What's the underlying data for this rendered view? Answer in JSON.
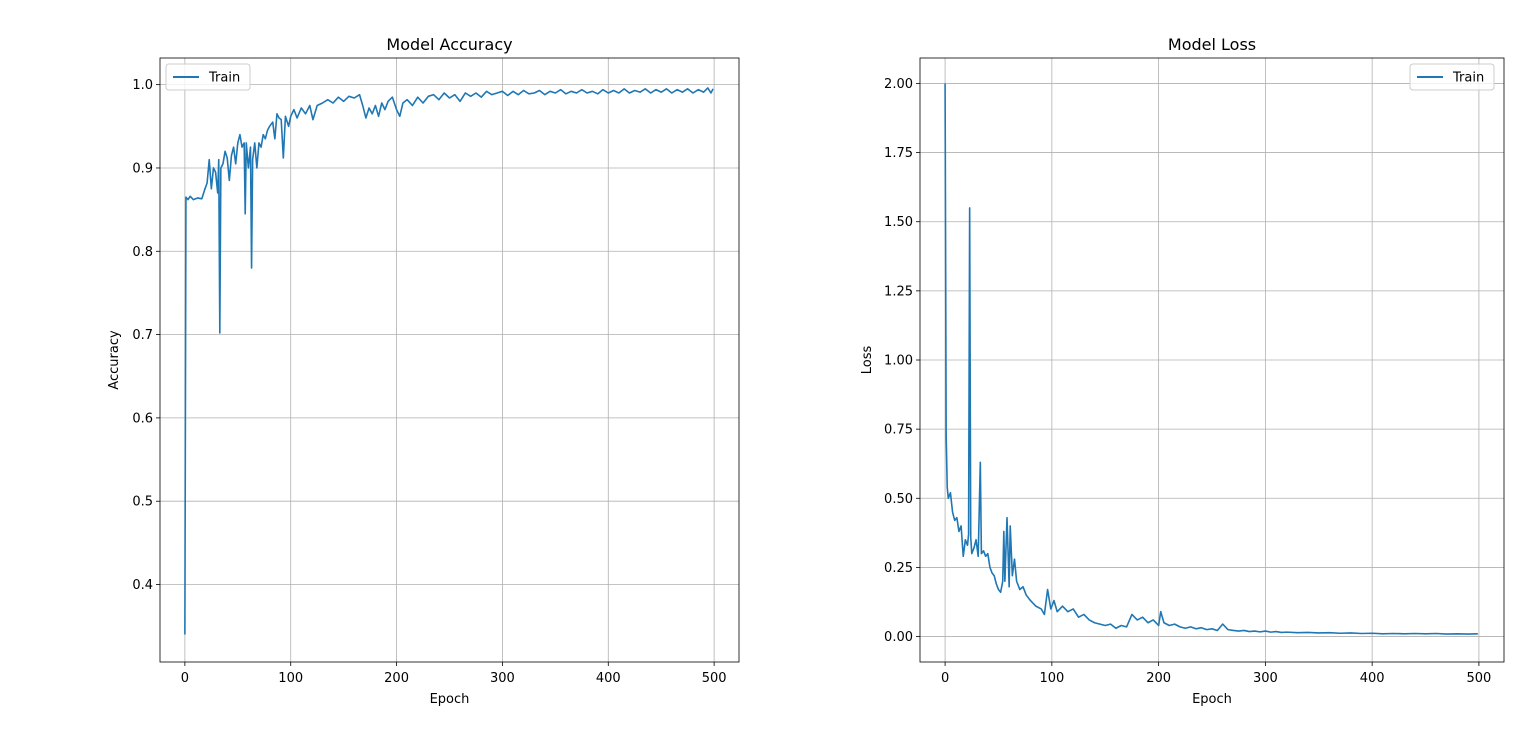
{
  "chart_data": [
    {
      "type": "line",
      "title": "Model Accuracy",
      "xlabel": "Epoch",
      "ylabel": "Accuracy",
      "xlim": [
        -23.5,
        523.5
      ],
      "ylim": [
        0.307,
        1.032
      ],
      "xticks": [
        0,
        100,
        200,
        300,
        400,
        500
      ],
      "xtick_labels": [
        "0",
        "100",
        "200",
        "300",
        "400",
        "500"
      ],
      "yticks": [
        0.4,
        0.5,
        0.6,
        0.7,
        0.8,
        0.9,
        1.0
      ],
      "ytick_labels": [
        "0.4",
        "0.5",
        "0.6",
        "0.7",
        "0.8",
        "0.9",
        "1.0"
      ],
      "grid": true,
      "legend_position": "upper left",
      "series": [
        {
          "name": "Train",
          "color": "#1f77b4",
          "points": [
            [
              0,
              0.34
            ],
            [
              1,
              0.865
            ],
            [
              3,
              0.862
            ],
            [
              5,
              0.866
            ],
            [
              8,
              0.862
            ],
            [
              12,
              0.864
            ],
            [
              16,
              0.863
            ],
            [
              19,
              0.875
            ],
            [
              21,
              0.882
            ],
            [
              23,
              0.91
            ],
            [
              25,
              0.875
            ],
            [
              27,
              0.9
            ],
            [
              29,
              0.895
            ],
            [
              31,
              0.87
            ],
            [
              32,
              0.91
            ],
            [
              33,
              0.702
            ],
            [
              34,
              0.9
            ],
            [
              36,
              0.905
            ],
            [
              38,
              0.92
            ],
            [
              40,
              0.912
            ],
            [
              42,
              0.885
            ],
            [
              44,
              0.915
            ],
            [
              46,
              0.925
            ],
            [
              48,
              0.905
            ],
            [
              50,
              0.93
            ],
            [
              52,
              0.94
            ],
            [
              54,
              0.925
            ],
            [
              56,
              0.93
            ],
            [
              57,
              0.845
            ],
            [
              58,
              0.93
            ],
            [
              60,
              0.9
            ],
            [
              62,
              0.925
            ],
            [
              63,
              0.78
            ],
            [
              64,
              0.91
            ],
            [
              66,
              0.93
            ],
            [
              68,
              0.9
            ],
            [
              70,
              0.93
            ],
            [
              72,
              0.925
            ],
            [
              74,
              0.94
            ],
            [
              76,
              0.935
            ],
            [
              78,
              0.945
            ],
            [
              80,
              0.95
            ],
            [
              83,
              0.955
            ],
            [
              85,
              0.935
            ],
            [
              87,
              0.965
            ],
            [
              89,
              0.96
            ],
            [
              91,
              0.958
            ],
            [
              93,
              0.912
            ],
            [
              95,
              0.962
            ],
            [
              98,
              0.95
            ],
            [
              100,
              0.962
            ],
            [
              103,
              0.97
            ],
            [
              106,
              0.96
            ],
            [
              110,
              0.972
            ],
            [
              114,
              0.965
            ],
            [
              118,
              0.975
            ],
            [
              121,
              0.958
            ],
            [
              125,
              0.975
            ],
            [
              130,
              0.978
            ],
            [
              135,
              0.982
            ],
            [
              140,
              0.978
            ],
            [
              145,
              0.985
            ],
            [
              150,
              0.98
            ],
            [
              155,
              0.986
            ],
            [
              160,
              0.984
            ],
            [
              165,
              0.988
            ],
            [
              168,
              0.975
            ],
            [
              171,
              0.96
            ],
            [
              174,
              0.972
            ],
            [
              177,
              0.965
            ],
            [
              180,
              0.975
            ],
            [
              183,
              0.962
            ],
            [
              186,
              0.978
            ],
            [
              189,
              0.97
            ],
            [
              192,
              0.98
            ],
            [
              196,
              0.985
            ],
            [
              200,
              0.97
            ],
            [
              203,
              0.962
            ],
            [
              206,
              0.978
            ],
            [
              210,
              0.982
            ],
            [
              215,
              0.975
            ],
            [
              220,
              0.985
            ],
            [
              225,
              0.978
            ],
            [
              230,
              0.986
            ],
            [
              235,
              0.988
            ],
            [
              240,
              0.982
            ],
            [
              245,
              0.99
            ],
            [
              250,
              0.984
            ],
            [
              255,
              0.988
            ],
            [
              260,
              0.98
            ],
            [
              265,
              0.99
            ],
            [
              270,
              0.986
            ],
            [
              275,
              0.99
            ],
            [
              280,
              0.985
            ],
            [
              285,
              0.992
            ],
            [
              290,
              0.988
            ],
            [
              295,
              0.99
            ],
            [
              300,
              0.992
            ],
            [
              305,
              0.987
            ],
            [
              310,
              0.992
            ],
            [
              315,
              0.988
            ],
            [
              320,
              0.993
            ],
            [
              325,
              0.989
            ],
            [
              330,
              0.99
            ],
            [
              335,
              0.993
            ],
            [
              340,
              0.988
            ],
            [
              345,
              0.992
            ],
            [
              350,
              0.99
            ],
            [
              355,
              0.994
            ],
            [
              360,
              0.989
            ],
            [
              365,
              0.992
            ],
            [
              370,
              0.99
            ],
            [
              375,
              0.994
            ],
            [
              380,
              0.99
            ],
            [
              385,
              0.992
            ],
            [
              390,
              0.989
            ],
            [
              395,
              0.994
            ],
            [
              400,
              0.99
            ],
            [
              405,
              0.993
            ],
            [
              410,
              0.99
            ],
            [
              415,
              0.995
            ],
            [
              420,
              0.99
            ],
            [
              425,
              0.993
            ],
            [
              430,
              0.991
            ],
            [
              435,
              0.995
            ],
            [
              440,
              0.99
            ],
            [
              445,
              0.994
            ],
            [
              450,
              0.991
            ],
            [
              455,
              0.995
            ],
            [
              460,
              0.99
            ],
            [
              465,
              0.994
            ],
            [
              470,
              0.991
            ],
            [
              475,
              0.995
            ],
            [
              480,
              0.99
            ],
            [
              485,
              0.994
            ],
            [
              490,
              0.991
            ],
            [
              494,
              0.996
            ],
            [
              497,
              0.99
            ],
            [
              499,
              0.995
            ]
          ]
        }
      ]
    },
    {
      "type": "line",
      "title": "Model Loss",
      "xlabel": "Epoch",
      "ylabel": "Loss",
      "xlim": [
        -23.5,
        523.5
      ],
      "ylim": [
        -0.092,
        2.092
      ],
      "xticks": [
        0,
        100,
        200,
        300,
        400,
        500
      ],
      "xtick_labels": [
        "0",
        "100",
        "200",
        "300",
        "400",
        "500"
      ],
      "yticks": [
        0.0,
        0.25,
        0.5,
        0.75,
        1.0,
        1.25,
        1.5,
        1.75,
        2.0
      ],
      "ytick_labels": [
        "0.00",
        "0.25",
        "0.50",
        "0.75",
        "1.00",
        "1.25",
        "1.50",
        "1.75",
        "2.00"
      ],
      "grid": true,
      "legend_position": "upper right",
      "series": [
        {
          "name": "Train",
          "color": "#1f77b4",
          "points": [
            [
              0,
              2.0
            ],
            [
              1,
              0.73
            ],
            [
              2,
              0.54
            ],
            [
              3,
              0.5
            ],
            [
              5,
              0.52
            ],
            [
              7,
              0.45
            ],
            [
              9,
              0.42
            ],
            [
              11,
              0.43
            ],
            [
              13,
              0.38
            ],
            [
              15,
              0.4
            ],
            [
              17,
              0.29
            ],
            [
              19,
              0.35
            ],
            [
              21,
              0.33
            ],
            [
              22,
              0.37
            ],
            [
              23,
              1.55
            ],
            [
              24,
              0.36
            ],
            [
              25,
              0.3
            ],
            [
              27,
              0.32
            ],
            [
              29,
              0.35
            ],
            [
              31,
              0.29
            ],
            [
              33,
              0.63
            ],
            [
              34,
              0.3
            ],
            [
              36,
              0.31
            ],
            [
              38,
              0.29
            ],
            [
              40,
              0.3
            ],
            [
              42,
              0.25
            ],
            [
              44,
              0.23
            ],
            [
              46,
              0.22
            ],
            [
              48,
              0.19
            ],
            [
              50,
              0.17
            ],
            [
              52,
              0.16
            ],
            [
              54,
              0.2
            ],
            [
              55,
              0.38
            ],
            [
              56,
              0.2
            ],
            [
              58,
              0.43
            ],
            [
              60,
              0.18
            ],
            [
              61,
              0.4
            ],
            [
              63,
              0.22
            ],
            [
              65,
              0.28
            ],
            [
              67,
              0.2
            ],
            [
              70,
              0.17
            ],
            [
              73,
              0.18
            ],
            [
              76,
              0.15
            ],
            [
              80,
              0.13
            ],
            [
              85,
              0.11
            ],
            [
              90,
              0.1
            ],
            [
              93,
              0.08
            ],
            [
              96,
              0.17
            ],
            [
              99,
              0.1
            ],
            [
              102,
              0.13
            ],
            [
              105,
              0.09
            ],
            [
              110,
              0.11
            ],
            [
              115,
              0.09
            ],
            [
              120,
              0.1
            ],
            [
              125,
              0.07
            ],
            [
              130,
              0.08
            ],
            [
              135,
              0.06
            ],
            [
              140,
              0.05
            ],
            [
              145,
              0.045
            ],
            [
              150,
              0.04
            ],
            [
              155,
              0.045
            ],
            [
              160,
              0.03
            ],
            [
              165,
              0.04
            ],
            [
              170,
              0.035
            ],
            [
              175,
              0.08
            ],
            [
              180,
              0.06
            ],
            [
              185,
              0.07
            ],
            [
              190,
              0.05
            ],
            [
              195,
              0.06
            ],
            [
              200,
              0.04
            ],
            [
              202,
              0.09
            ],
            [
              205,
              0.05
            ],
            [
              210,
              0.04
            ],
            [
              215,
              0.045
            ],
            [
              220,
              0.035
            ],
            [
              225,
              0.03
            ],
            [
              230,
              0.035
            ],
            [
              235,
              0.028
            ],
            [
              240,
              0.032
            ],
            [
              245,
              0.025
            ],
            [
              250,
              0.028
            ],
            [
              255,
              0.022
            ],
            [
              260,
              0.045
            ],
            [
              265,
              0.025
            ],
            [
              270,
              0.022
            ],
            [
              275,
              0.02
            ],
            [
              280,
              0.022
            ],
            [
              285,
              0.018
            ],
            [
              290,
              0.02
            ],
            [
              295,
              0.017
            ],
            [
              300,
              0.02
            ],
            [
              305,
              0.016
            ],
            [
              310,
              0.018
            ],
            [
              315,
              0.015
            ],
            [
              320,
              0.016
            ],
            [
              330,
              0.014
            ],
            [
              340,
              0.015
            ],
            [
              350,
              0.013
            ],
            [
              360,
              0.014
            ],
            [
              370,
              0.012
            ],
            [
              380,
              0.013
            ],
            [
              390,
              0.011
            ],
            [
              400,
              0.012
            ],
            [
              410,
              0.01
            ],
            [
              420,
              0.011
            ],
            [
              430,
              0.01
            ],
            [
              440,
              0.011
            ],
            [
              450,
              0.01
            ],
            [
              460,
              0.011
            ],
            [
              470,
              0.009
            ],
            [
              480,
              0.01
            ],
            [
              490,
              0.009
            ],
            [
              499,
              0.01
            ]
          ]
        }
      ]
    }
  ]
}
